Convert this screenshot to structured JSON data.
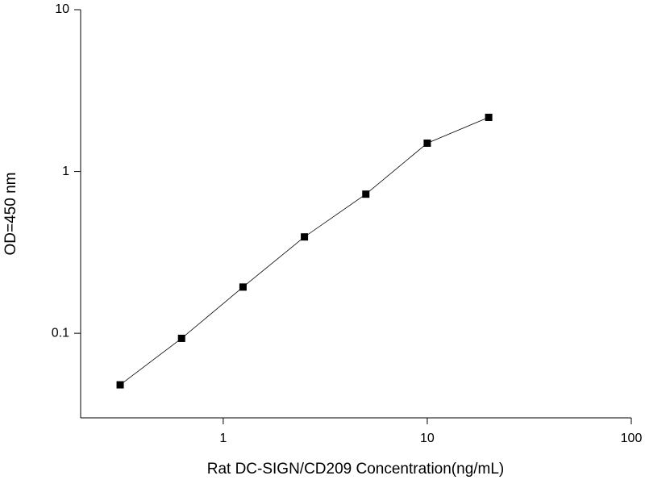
{
  "chart_data": {
    "type": "line",
    "log_x": true,
    "log_y": true,
    "x_label": "Rat DC-SIGN/CD209 Concentration(ng/mL)",
    "y_label": "OD=450 nm",
    "x": [
      0.3125,
      0.625,
      1.25,
      2.5,
      5,
      10,
      20
    ],
    "series": [
      {
        "name": "OD",
        "color": "#000000",
        "values": [
          0.048,
          0.093,
          0.193,
          0.394,
          0.724,
          1.496,
          2.16
        ]
      }
    ],
    "xlim": [
      0.2,
      100
    ],
    "xticks": [
      1,
      10,
      100
    ],
    "ylim": [
      0.03,
      10
    ],
    "yticks": [
      0.1,
      1,
      10
    ]
  }
}
